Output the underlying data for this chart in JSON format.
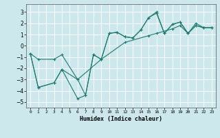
{
  "xlabel": "Humidex (Indice chaleur)",
  "bg_color": "#cce8ec",
  "grid_color": "#ffffff",
  "line_color": "#1a7a6e",
  "xlim": [
    -0.5,
    23.5
  ],
  "ylim": [
    -5.5,
    3.7
  ],
  "xticks": [
    0,
    1,
    2,
    3,
    4,
    5,
    6,
    7,
    8,
    9,
    10,
    11,
    12,
    13,
    14,
    15,
    16,
    17,
    18,
    19,
    20,
    21,
    22,
    23
  ],
  "yticks": [
    -5,
    -4,
    -3,
    -2,
    -1,
    0,
    1,
    2,
    3
  ],
  "line1_x": [
    0,
    1,
    3,
    4,
    6,
    7,
    8,
    9,
    10,
    11,
    12,
    13,
    14,
    15,
    16,
    17,
    18,
    19,
    20,
    21,
    22,
    23
  ],
  "line1_y": [
    -0.7,
    -3.7,
    -3.3,
    -2.1,
    -4.7,
    -4.4,
    -0.8,
    -1.2,
    1.1,
    1.2,
    0.8,
    0.7,
    1.4,
    2.5,
    3.0,
    1.1,
    1.9,
    2.1,
    1.1,
    1.8,
    1.6,
    1.6
  ],
  "line2_x": [
    0,
    1,
    3,
    4,
    6,
    7,
    8,
    9,
    10,
    11,
    12,
    13,
    14,
    15,
    16,
    17,
    18,
    19,
    20,
    21,
    22,
    23
  ],
  "line2_y": [
    -0.7,
    -3.7,
    -3.3,
    -2.1,
    -3.0,
    -4.4,
    -0.8,
    -1.2,
    1.1,
    1.2,
    0.8,
    0.7,
    1.4,
    2.5,
    2.9,
    1.1,
    1.9,
    2.1,
    1.1,
    1.8,
    1.6,
    1.6
  ],
  "line3_x": [
    0,
    1,
    3,
    4,
    6,
    9,
    12,
    15,
    16,
    18,
    19,
    20,
    21,
    22,
    23
  ],
  "line3_y": [
    -0.7,
    -1.2,
    -1.2,
    -0.8,
    -3.0,
    -1.2,
    0.3,
    0.9,
    1.1,
    1.5,
    1.8,
    1.1,
    2.0,
    1.6,
    1.6
  ]
}
